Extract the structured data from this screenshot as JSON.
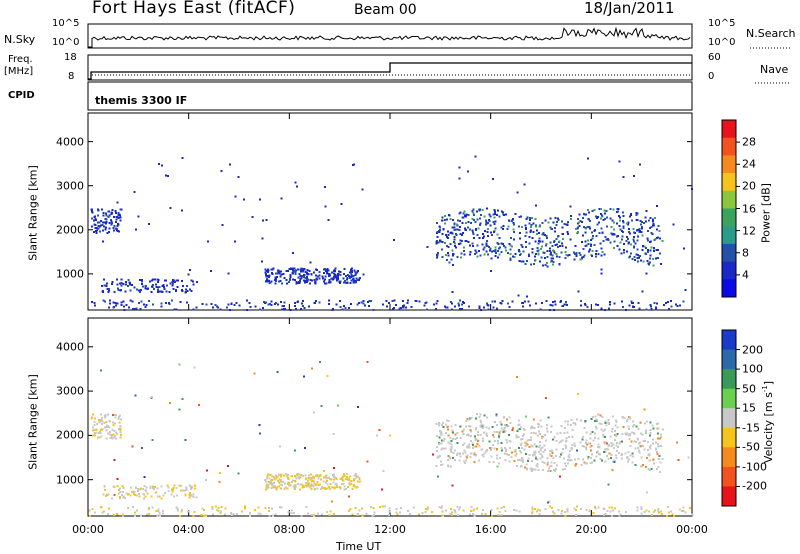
{
  "header": {
    "station": "Fort Hays East (fitACF)",
    "beam": "Beam 00",
    "date": "18/Jan/2011"
  },
  "top_panels": {
    "nsky_label": "N.Sky",
    "nsearch_label": "N.Search",
    "nsky_ticks_left": [
      "10^5",
      "10^0"
    ],
    "nsky_ticks_right": [
      "10^5",
      "10^0"
    ],
    "freq_label_line1": "Freq.",
    "freq_label_line2": "[MHz]",
    "freq_ticks_left": [
      "18",
      "8"
    ],
    "freq_ticks_right": [
      "60",
      "0"
    ],
    "nave_label": "Nave",
    "cpid_label": "CPID",
    "cpid_text": "themis 3300 IF"
  },
  "chart_data": [
    {
      "type": "scatter",
      "title": "Power",
      "ylabel": "Slant Range [km]",
      "xlabel": "Time UT",
      "x_ticks": [
        "00:00",
        "04:00",
        "08:00",
        "12:00",
        "16:00",
        "20:00",
        "00:00"
      ],
      "xlim_hours": [
        0,
        24
      ],
      "y_ticks": [
        1000,
        2000,
        3000,
        4000
      ],
      "ylim_km": [
        180,
        4650
      ],
      "colorbar": {
        "label": "Power [dB]",
        "ticks": [
          "28",
          "24",
          "20",
          "16",
          "12",
          "8",
          "4"
        ],
        "colors": [
          "#e8141c",
          "#f2521e",
          "#f58a1e",
          "#f5c51c",
          "#8cc63f",
          "#3aa35e",
          "#2b9c8a",
          "#2451a8",
          "#1a28c8",
          "#0a0ae6"
        ]
      },
      "regions": [
        {
          "t": [
            0.1,
            1.3
          ],
          "r": [
            1950,
            2500
          ],
          "n": 90
        },
        {
          "t": [
            0.5,
            4.3
          ],
          "r": [
            600,
            900
          ],
          "n": 110
        },
        {
          "t": [
            7.0,
            10.8
          ],
          "r": [
            800,
            1150
          ],
          "n": 260
        },
        {
          "t": [
            13.8,
            22.8
          ],
          "r": [
            1300,
            2400
          ],
          "n": 700
        },
        {
          "t": [
            0,
            24
          ],
          "r": [
            200,
            420
          ],
          "n": 260
        }
      ]
    },
    {
      "type": "scatter",
      "title": "Velocity",
      "ylabel": "Slant Range [km]",
      "xlabel": "Time UT",
      "x_ticks": [
        "00:00",
        "04:00",
        "08:00",
        "12:00",
        "16:00",
        "20:00",
        "00:00"
      ],
      "xlim_hours": [
        0,
        24
      ],
      "y_ticks": [
        1000,
        2000,
        3000,
        4000
      ],
      "ylim_km": [
        180,
        4650
      ],
      "colorbar": {
        "label": "Velocity [m s^-1]",
        "ticks": [
          "200",
          "100",
          "50",
          "15",
          "-15",
          "-50",
          "-100",
          "-200"
        ],
        "colors": [
          "#1a3ac8",
          "#2b6aa8",
          "#3a9a5a",
          "#6ad050",
          "#c8c8c8",
          "#f5c51c",
          "#f58a1e",
          "#f2521e",
          "#e8141c"
        ]
      },
      "regions": [
        {
          "t": [
            0.1,
            1.3
          ],
          "r": [
            1950,
            2500
          ],
          "n": 90
        },
        {
          "t": [
            0.5,
            4.3
          ],
          "r": [
            600,
            900
          ],
          "n": 110
        },
        {
          "t": [
            7.0,
            10.8
          ],
          "r": [
            800,
            1150
          ],
          "n": 260
        },
        {
          "t": [
            13.8,
            22.8
          ],
          "r": [
            1300,
            2400
          ],
          "n": 700
        },
        {
          "t": [
            0,
            24
          ],
          "r": [
            200,
            420
          ],
          "n": 260
        }
      ]
    }
  ]
}
